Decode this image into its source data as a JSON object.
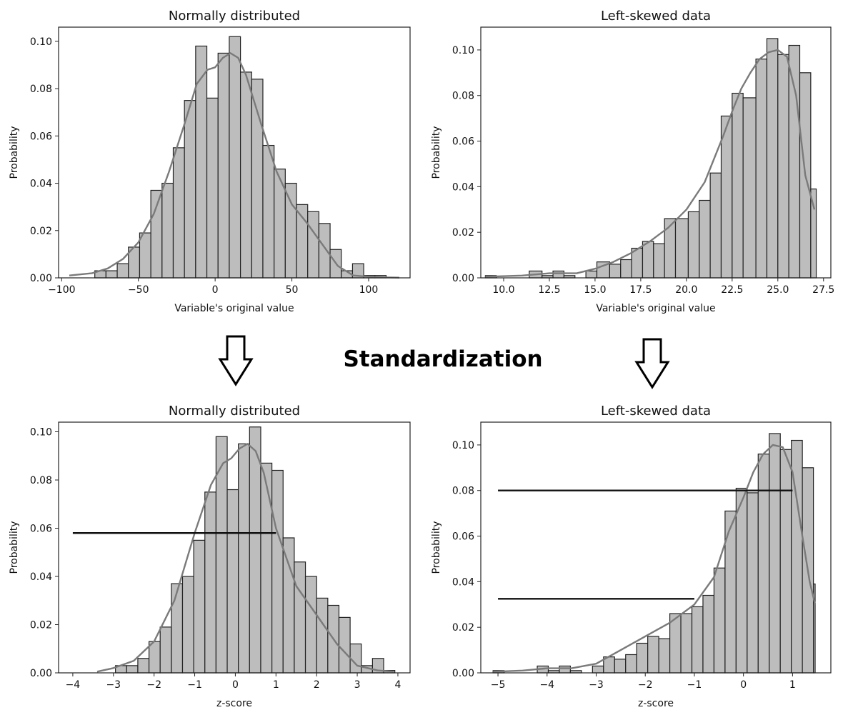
{
  "middle_label": "Standardization",
  "colors": {
    "bar_fill": "#bdbdbd",
    "bar_edge": "#222222",
    "kde_line": "#7a7a7a",
    "hline": "#111111",
    "arrow": "#000000"
  },
  "chart_data": [
    {
      "type": "bar",
      "title": "Normally distributed",
      "xlabel": "Variable's original value",
      "ylabel": "Probability",
      "xlim": [
        -102,
        127
      ],
      "ylim": [
        0,
        0.106
      ],
      "xticks": [
        -100,
        -50,
        0,
        50,
        100
      ],
      "xtick_labels": [
        "−100",
        "−50",
        "0",
        "50",
        "100"
      ],
      "yticks": [
        0,
        0.02,
        0.04,
        0.06,
        0.08,
        0.1
      ],
      "ytick_labels": [
        "0.00",
        "0.02",
        "0.04",
        "0.06",
        "0.08",
        "0.10"
      ],
      "bins": [
        {
          "x0": -93,
          "x1": -85.7,
          "value": 0.0
        },
        {
          "x0": -85.7,
          "x1": -78.4,
          "value": 0.0
        },
        {
          "x0": -78.4,
          "x1": -71.1,
          "value": 0.003
        },
        {
          "x0": -71.1,
          "x1": -63.8,
          "value": 0.003
        },
        {
          "x0": -63.8,
          "x1": -56.5,
          "value": 0.006
        },
        {
          "x0": -56.5,
          "x1": -49.2,
          "value": 0.013
        },
        {
          "x0": -49.2,
          "x1": -41.9,
          "value": 0.019
        },
        {
          "x0": -41.9,
          "x1": -34.6,
          "value": 0.037
        },
        {
          "x0": -34.6,
          "x1": -27.3,
          "value": 0.04
        },
        {
          "x0": -27.3,
          "x1": -20.0,
          "value": 0.055
        },
        {
          "x0": -20.0,
          "x1": -12.7,
          "value": 0.075
        },
        {
          "x0": -12.7,
          "x1": -5.4,
          "value": 0.098
        },
        {
          "x0": -5.4,
          "x1": 1.9,
          "value": 0.076
        },
        {
          "x0": 1.9,
          "x1": 9.2,
          "value": 0.095
        },
        {
          "x0": 9.2,
          "x1": 16.5,
          "value": 0.102
        },
        {
          "x0": 16.5,
          "x1": 23.8,
          "value": 0.087
        },
        {
          "x0": 23.8,
          "x1": 31.1,
          "value": 0.084
        },
        {
          "x0": 31.1,
          "x1": 38.4,
          "value": 0.056
        },
        {
          "x0": 38.4,
          "x1": 45.7,
          "value": 0.046
        },
        {
          "x0": 45.7,
          "x1": 53.0,
          "value": 0.04
        },
        {
          "x0": 53.0,
          "x1": 60.3,
          "value": 0.031
        },
        {
          "x0": 60.3,
          "x1": 67.6,
          "value": 0.028
        },
        {
          "x0": 67.6,
          "x1": 74.9,
          "value": 0.023
        },
        {
          "x0": 74.9,
          "x1": 82.2,
          "value": 0.012
        },
        {
          "x0": 82.2,
          "x1": 89.5,
          "value": 0.003
        },
        {
          "x0": 89.5,
          "x1": 96.8,
          "value": 0.006
        },
        {
          "x0": 96.8,
          "x1": 104.1,
          "value": 0.001
        },
        {
          "x0": 104.1,
          "x1": 111.4,
          "value": 0.001
        },
        {
          "x0": 111.4,
          "x1": 118.7,
          "value": 0.0
        },
        {
          "x0": 118.7,
          "x1": 121,
          "value": 0.0
        }
      ],
      "kde": {
        "x": [
          -95,
          -80,
          -70,
          -60,
          -50,
          -40,
          -30,
          -20,
          -12,
          -5,
          0,
          5,
          10,
          15,
          20,
          30,
          40,
          50,
          60,
          70,
          80,
          90,
          100,
          110,
          120
        ],
        "y": [
          0.001,
          0.002,
          0.004,
          0.008,
          0.015,
          0.027,
          0.045,
          0.065,
          0.082,
          0.088,
          0.089,
          0.093,
          0.095,
          0.093,
          0.086,
          0.065,
          0.045,
          0.031,
          0.023,
          0.014,
          0.005,
          0.001,
          0.0005,
          0.0002,
          0.0001
        ]
      },
      "hlines": []
    },
    {
      "type": "bar",
      "title": "Left-skewed data",
      "xlabel": "Variable's original value",
      "ylabel": "Probability",
      "xlim": [
        8.75,
        27.9
      ],
      "ylim": [
        0,
        0.11
      ],
      "xticks": [
        10,
        12.5,
        15,
        17.5,
        20,
        22.5,
        25,
        27.5
      ],
      "xtick_labels": [
        "10.0",
        "12.5",
        "15.0",
        "17.5",
        "20.0",
        "22.5",
        "25.0",
        "27.5"
      ],
      "yticks": [
        0,
        0.02,
        0.04,
        0.06,
        0.08,
        0.1
      ],
      "ytick_labels": [
        "0.00",
        "0.02",
        "0.04",
        "0.06",
        "0.08",
        "0.10"
      ],
      "bins": [
        {
          "x0": 9.0,
          "x1": 9.6,
          "value": 0.001
        },
        {
          "x0": 9.6,
          "x1": 10.2,
          "value": 0.0
        },
        {
          "x0": 10.2,
          "x1": 10.8,
          "value": 0.0
        },
        {
          "x0": 10.8,
          "x1": 11.4,
          "value": 0.0
        },
        {
          "x0": 11.4,
          "x1": 12.1,
          "value": 0.003
        },
        {
          "x0": 12.1,
          "x1": 12.7,
          "value": 0.001
        },
        {
          "x0": 12.7,
          "x1": 13.3,
          "value": 0.003
        },
        {
          "x0": 13.3,
          "x1": 13.9,
          "value": 0.001
        },
        {
          "x0": 13.9,
          "x1": 14.5,
          "value": 0.0
        },
        {
          "x0": 14.5,
          "x1": 15.1,
          "value": 0.003
        },
        {
          "x0": 15.1,
          "x1": 15.8,
          "value": 0.007
        },
        {
          "x0": 15.8,
          "x1": 16.4,
          "value": 0.006
        },
        {
          "x0": 16.4,
          "x1": 17.0,
          "value": 0.008
        },
        {
          "x0": 17.0,
          "x1": 17.6,
          "value": 0.013
        },
        {
          "x0": 17.6,
          "x1": 18.2,
          "value": 0.016
        },
        {
          "x0": 18.2,
          "x1": 18.8,
          "value": 0.015
        },
        {
          "x0": 18.8,
          "x1": 19.4,
          "value": 0.026
        },
        {
          "x0": 19.4,
          "x1": 20.1,
          "value": 0.026
        },
        {
          "x0": 20.1,
          "x1": 20.7,
          "value": 0.029
        },
        {
          "x0": 20.7,
          "x1": 21.3,
          "value": 0.034
        },
        {
          "x0": 21.3,
          "x1": 21.9,
          "value": 0.046
        },
        {
          "x0": 21.9,
          "x1": 22.5,
          "value": 0.071
        },
        {
          "x0": 22.5,
          "x1": 23.1,
          "value": 0.081
        },
        {
          "x0": 23.1,
          "x1": 23.8,
          "value": 0.079
        },
        {
          "x0": 23.8,
          "x1": 24.4,
          "value": 0.096
        },
        {
          "x0": 24.4,
          "x1": 25.0,
          "value": 0.105
        },
        {
          "x0": 25.0,
          "x1": 25.6,
          "value": 0.098
        },
        {
          "x0": 25.6,
          "x1": 26.2,
          "value": 0.102
        },
        {
          "x0": 26.2,
          "x1": 26.8,
          "value": 0.09
        },
        {
          "x0": 26.8,
          "x1": 27.1,
          "value": 0.039
        }
      ],
      "kde": {
        "x": [
          9,
          11,
          12.5,
          14,
          15,
          16,
          17,
          18,
          19,
          20,
          21,
          22,
          22.5,
          23,
          23.5,
          24,
          24.5,
          25,
          25.5,
          26,
          26.5,
          27
        ],
        "y": [
          0.0005,
          0.001,
          0.002,
          0.002,
          0.004,
          0.007,
          0.011,
          0.016,
          0.022,
          0.03,
          0.042,
          0.062,
          0.073,
          0.083,
          0.09,
          0.096,
          0.099,
          0.1,
          0.097,
          0.08,
          0.045,
          0.03
        ]
      },
      "hlines": []
    },
    {
      "type": "bar",
      "title": "Normally distributed",
      "xlabel": "z-score",
      "ylabel": "Probability",
      "xlim": [
        -4.35,
        4.3
      ],
      "ylim": [
        0,
        0.104
      ],
      "xticks": [
        -4,
        -3,
        -2,
        -1,
        0,
        1,
        2,
        3,
        4
      ],
      "xtick_labels": [
        "−4",
        "−3",
        "−2",
        "−1",
        "0",
        "1",
        "2",
        "3",
        "4"
      ],
      "yticks": [
        0,
        0.02,
        0.04,
        0.06,
        0.08,
        0.1
      ],
      "ytick_labels": [
        "0.00",
        "0.02",
        "0.04",
        "0.06",
        "0.08",
        "0.10"
      ],
      "bins": [
        {
          "x0": -3.5,
          "x1": -3.225,
          "value": 0.0
        },
        {
          "x0": -3.225,
          "x1": -2.95,
          "value": 0.0
        },
        {
          "x0": -2.95,
          "x1": -2.675,
          "value": 0.003
        },
        {
          "x0": -2.675,
          "x1": -2.4,
          "value": 0.003
        },
        {
          "x0": -2.4,
          "x1": -2.125,
          "value": 0.006
        },
        {
          "x0": -2.125,
          "x1": -1.85,
          "value": 0.013
        },
        {
          "x0": -1.85,
          "x1": -1.575,
          "value": 0.019
        },
        {
          "x0": -1.575,
          "x1": -1.3,
          "value": 0.037
        },
        {
          "x0": -1.3,
          "x1": -1.025,
          "value": 0.04
        },
        {
          "x0": -1.025,
          "x1": -0.75,
          "value": 0.055
        },
        {
          "x0": -0.75,
          "x1": -0.475,
          "value": 0.075
        },
        {
          "x0": -0.475,
          "x1": -0.2,
          "value": 0.098
        },
        {
          "x0": -0.2,
          "x1": 0.075,
          "value": 0.076
        },
        {
          "x0": 0.075,
          "x1": 0.35,
          "value": 0.095
        },
        {
          "x0": 0.35,
          "x1": 0.625,
          "value": 0.102
        },
        {
          "x0": 0.625,
          "x1": 0.9,
          "value": 0.087
        },
        {
          "x0": 0.9,
          "x1": 1.175,
          "value": 0.084
        },
        {
          "x0": 1.175,
          "x1": 1.45,
          "value": 0.056
        },
        {
          "x0": 1.45,
          "x1": 1.725,
          "value": 0.046
        },
        {
          "x0": 1.725,
          "x1": 2.0,
          "value": 0.04
        },
        {
          "x0": 2.0,
          "x1": 2.275,
          "value": 0.031
        },
        {
          "x0": 2.275,
          "x1": 2.55,
          "value": 0.028
        },
        {
          "x0": 2.55,
          "x1": 2.825,
          "value": 0.023
        },
        {
          "x0": 2.825,
          "x1": 3.1,
          "value": 0.012
        },
        {
          "x0": 3.1,
          "x1": 3.375,
          "value": 0.003
        },
        {
          "x0": 3.375,
          "x1": 3.65,
          "value": 0.006
        },
        {
          "x0": 3.65,
          "x1": 3.925,
          "value": 0.001
        }
      ],
      "kde": {
        "x": [
          -3.4,
          -3.0,
          -2.5,
          -2.0,
          -1.5,
          -1.0,
          -0.6,
          -0.3,
          -0.1,
          0.1,
          0.3,
          0.5,
          0.7,
          1.0,
          1.5,
          2.0,
          2.5,
          3.0,
          3.5,
          3.9
        ],
        "y": [
          0.0005,
          0.002,
          0.005,
          0.013,
          0.03,
          0.058,
          0.078,
          0.087,
          0.089,
          0.093,
          0.095,
          0.092,
          0.083,
          0.06,
          0.036,
          0.024,
          0.012,
          0.003,
          0.001,
          0.0005
        ]
      },
      "hlines": [
        {
          "y": 0.058,
          "x0": -4.0,
          "x1": 1.0
        }
      ]
    },
    {
      "type": "bar",
      "title": "Left-skewed data",
      "xlabel": "z-score",
      "ylabel": "Probability",
      "xlim": [
        -5.35,
        1.78
      ],
      "ylim": [
        0,
        0.11
      ],
      "xticks": [
        -5,
        -4,
        -3,
        -2,
        -1,
        0,
        1
      ],
      "xtick_labels": [
        "−5",
        "−4",
        "−3",
        "−2",
        "−1",
        "0",
        "1"
      ],
      "yticks": [
        0,
        0.02,
        0.04,
        0.06,
        0.08,
        0.1
      ],
      "ytick_labels": [
        "0.00",
        "0.02",
        "0.04",
        "0.06",
        "0.08",
        "0.10"
      ],
      "bins": [
        {
          "x0": -5.1,
          "x1": -4.875,
          "value": 0.001
        },
        {
          "x0": -4.875,
          "x1": -4.65,
          "value": 0.0
        },
        {
          "x0": -4.65,
          "x1": -4.425,
          "value": 0.0
        },
        {
          "x0": -4.425,
          "x1": -4.2,
          "value": 0.0
        },
        {
          "x0": -4.2,
          "x1": -3.975,
          "value": 0.003
        },
        {
          "x0": -3.975,
          "x1": -3.75,
          "value": 0.001
        },
        {
          "x0": -3.75,
          "x1": -3.525,
          "value": 0.003
        },
        {
          "x0": -3.525,
          "x1": -3.3,
          "value": 0.001
        },
        {
          "x0": -3.3,
          "x1": -3.075,
          "value": 0.0
        },
        {
          "x0": -3.075,
          "x1": -2.85,
          "value": 0.003
        },
        {
          "x0": -2.85,
          "x1": -2.625,
          "value": 0.007
        },
        {
          "x0": -2.625,
          "x1": -2.4,
          "value": 0.006
        },
        {
          "x0": -2.4,
          "x1": -2.175,
          "value": 0.008
        },
        {
          "x0": -2.175,
          "x1": -1.95,
          "value": 0.013
        },
        {
          "x0": -1.95,
          "x1": -1.725,
          "value": 0.016
        },
        {
          "x0": -1.725,
          "x1": -1.5,
          "value": 0.015
        },
        {
          "x0": -1.5,
          "x1": -1.275,
          "value": 0.026
        },
        {
          "x0": -1.275,
          "x1": -1.05,
          "value": 0.026
        },
        {
          "x0": -1.05,
          "x1": -0.825,
          "value": 0.029
        },
        {
          "x0": -0.825,
          "x1": -0.6,
          "value": 0.034
        },
        {
          "x0": -0.6,
          "x1": -0.375,
          "value": 0.046
        },
        {
          "x0": -0.375,
          "x1": -0.15,
          "value": 0.071
        },
        {
          "x0": -0.15,
          "x1": 0.075,
          "value": 0.081
        },
        {
          "x0": 0.075,
          "x1": 0.3,
          "value": 0.079
        },
        {
          "x0": 0.3,
          "x1": 0.525,
          "value": 0.096
        },
        {
          "x0": 0.525,
          "x1": 0.75,
          "value": 0.105
        },
        {
          "x0": 0.75,
          "x1": 0.975,
          "value": 0.098
        },
        {
          "x0": 0.975,
          "x1": 1.2,
          "value": 0.102
        },
        {
          "x0": 1.2,
          "x1": 1.425,
          "value": 0.09
        },
        {
          "x0": 1.425,
          "x1": 1.46,
          "value": 0.039
        }
      ],
      "kde": {
        "x": [
          -5.1,
          -4.5,
          -4.0,
          -3.5,
          -3.0,
          -2.5,
          -2.0,
          -1.5,
          -1.0,
          -0.6,
          -0.3,
          0.0,
          0.2,
          0.4,
          0.6,
          0.8,
          1.0,
          1.2,
          1.35,
          1.46
        ],
        "y": [
          0.0005,
          0.001,
          0.002,
          0.002,
          0.004,
          0.01,
          0.016,
          0.022,
          0.03,
          0.042,
          0.062,
          0.077,
          0.088,
          0.096,
          0.1,
          0.099,
          0.088,
          0.06,
          0.04,
          0.03
        ]
      },
      "hlines": [
        {
          "y": 0.08,
          "x0": -5.0,
          "x1": 1.0
        },
        {
          "y": 0.0325,
          "x0": -5.0,
          "x1": -1.0
        }
      ]
    }
  ]
}
